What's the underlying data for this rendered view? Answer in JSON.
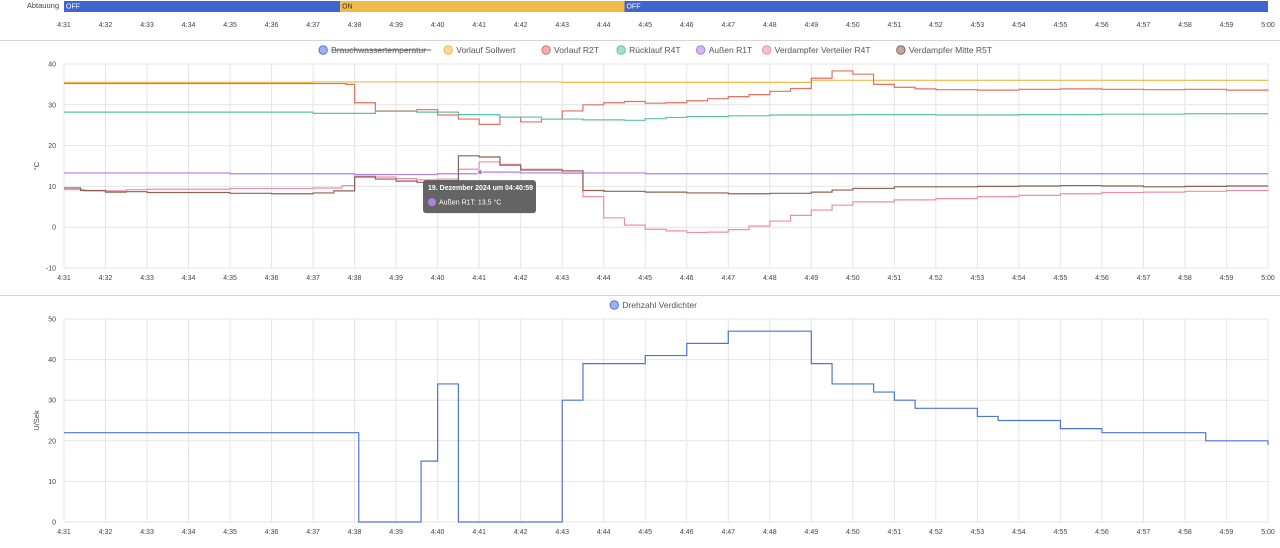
{
  "colors": {
    "timeline_off": "#3f66cf",
    "timeline_on": "#f2ba47",
    "grid": "#e4e4e4",
    "divider": "#d6d6d6",
    "tooltip_bg": "#5c5c5c"
  },
  "time_ticks": [
    "4:31",
    "4:32",
    "4:33",
    "4:34",
    "4:35",
    "4:36",
    "4:37",
    "4:38",
    "4:39",
    "4:40",
    "4:41",
    "4:42",
    "4:43",
    "4:44",
    "4:45",
    "4:46",
    "4:47",
    "4:48",
    "4:49",
    "4:50",
    "4:51",
    "4:52",
    "4:53",
    "4:54",
    "4:55",
    "4:56",
    "4:57",
    "4:58",
    "4:59",
    "5:00"
  ],
  "timeline": {
    "label": "Abtauung",
    "segments": [
      {
        "state": "OFF",
        "start": "4:31",
        "end": "4:37.65",
        "color": "#3f66cf",
        "text_color": "#ffffff"
      },
      {
        "state": "ON",
        "start": "4:37.65",
        "end": "4:44.5",
        "color": "#f2ba47",
        "text_color": "#333333"
      },
      {
        "state": "OFF",
        "start": "4:44.5",
        "end": "5:00",
        "color": "#3f66cf",
        "text_color": "#ffffff"
      }
    ]
  },
  "tooltip": {
    "title": "19. Dezember 2024 um 04:40:59",
    "line": "Außen R1T: 13,5 °C",
    "color": "#b07ee6",
    "point_x": 41.02,
    "point_y": 13.5
  },
  "chart_data": [
    {
      "type": "line",
      "step": true,
      "ylabel": "°C",
      "ylim": [
        -10,
        40
      ],
      "yticks": [
        -10,
        0,
        10,
        20,
        30,
        40
      ],
      "xlim": [
        31,
        60
      ],
      "legend_position": "top-center",
      "series": [
        {
          "name": "Brauchwassertemperatur",
          "color": "#4e73df",
          "hidden": true,
          "points": []
        },
        {
          "name": "Vorlauf Sollwert",
          "color": "#f2b84b",
          "points": [
            [
              31,
              35.5
            ],
            [
              37,
              35.6
            ],
            [
              43,
              35.5
            ],
            [
              49,
              36.0
            ],
            [
              60,
              36.0
            ]
          ]
        },
        {
          "name": "Vorlauf R2T",
          "color": "#e4705f",
          "points": [
            [
              31,
              35.2
            ],
            [
              37.8,
              35.0
            ],
            [
              38,
              30.5
            ],
            [
              38.5,
              28.5
            ],
            [
              39.5,
              28.8
            ],
            [
              40,
              27.5
            ],
            [
              40.5,
              26.5
            ],
            [
              41,
              25.2
            ],
            [
              41.5,
              27.0
            ],
            [
              42,
              25.8
            ],
            [
              42.5,
              26.5
            ],
            [
              43,
              28.5
            ],
            [
              43.5,
              30.0
            ],
            [
              44,
              30.5
            ],
            [
              44.5,
              30.8
            ],
            [
              45,
              30.4
            ],
            [
              45.5,
              30.5
            ],
            [
              46,
              31.0
            ],
            [
              46.5,
              31.5
            ],
            [
              47,
              32.0
            ],
            [
              47.5,
              32.5
            ],
            [
              48,
              33.3
            ],
            [
              48.5,
              34.0
            ],
            [
              49,
              36.5
            ],
            [
              49.5,
              38.3
            ],
            [
              50,
              37.5
            ],
            [
              50.5,
              35.0
            ],
            [
              51,
              34.3
            ],
            [
              51.5,
              33.9
            ],
            [
              52,
              33.7
            ],
            [
              53,
              33.6
            ],
            [
              54,
              33.8
            ],
            [
              55,
              33.9
            ],
            [
              56,
              33.8
            ],
            [
              57,
              33.7
            ],
            [
              58,
              33.8
            ],
            [
              59,
              33.6
            ],
            [
              60,
              33.4
            ]
          ]
        },
        {
          "name": "Rücklauf R4T",
          "color": "#58c4a5",
          "points": [
            [
              31,
              28.2
            ],
            [
              37,
              27.9
            ],
            [
              38.5,
              28.4
            ],
            [
              39.5,
              28.2
            ],
            [
              40.5,
              27.6
            ],
            [
              41.5,
              27.0
            ],
            [
              42.5,
              26.5
            ],
            [
              43.5,
              26.3
            ],
            [
              44.5,
              26.2
            ],
            [
              45,
              26.6
            ],
            [
              45.5,
              26.9
            ],
            [
              46,
              27.1
            ],
            [
              47,
              27.3
            ],
            [
              48,
              27.5
            ],
            [
              50,
              27.6
            ],
            [
              52,
              27.5
            ],
            [
              54,
              27.6
            ],
            [
              56,
              27.7
            ],
            [
              58,
              27.8
            ],
            [
              60,
              27.8
            ]
          ]
        },
        {
          "name": "Außen R1T",
          "color": "#b07ee6",
          "points": [
            [
              31,
              13.3
            ],
            [
              35,
              13.1
            ],
            [
              38,
              12.9
            ],
            [
              40,
              13.1
            ],
            [
              41,
              13.5
            ],
            [
              42,
              13.3
            ],
            [
              45,
              13.1
            ],
            [
              50,
              13.1
            ],
            [
              55,
              13.1
            ],
            [
              60,
              13.0
            ]
          ]
        },
        {
          "name": "Verdampfer Verteiler R4T",
          "color": "#f28ab0",
          "points": [
            [
              31,
              9.2
            ],
            [
              31.5,
              8.9
            ],
            [
              32.5,
              9.2
            ],
            [
              33,
              9.3
            ],
            [
              35,
              9.5
            ],
            [
              37,
              9.6
            ],
            [
              37.7,
              10.2
            ],
            [
              38,
              12.5
            ],
            [
              38.5,
              12.3
            ],
            [
              39,
              11.9
            ],
            [
              39.5,
              11.6
            ],
            [
              40,
              11.8
            ],
            [
              40.5,
              14.2
            ],
            [
              41,
              16.0
            ],
            [
              41.5,
              15.4
            ],
            [
              42,
              14.2
            ],
            [
              43,
              13.2
            ],
            [
              43.5,
              7.5
            ],
            [
              44,
              2.3
            ],
            [
              44.5,
              0.5
            ],
            [
              45,
              -0.5
            ],
            [
              45.5,
              -0.9
            ],
            [
              46,
              -1.3
            ],
            [
              46.5,
              -1.2
            ],
            [
              47,
              -0.6
            ],
            [
              47.5,
              0.3
            ],
            [
              48,
              1.5
            ],
            [
              48.5,
              2.9
            ],
            [
              49,
              4.2
            ],
            [
              49.5,
              5.4
            ],
            [
              50,
              6.2
            ],
            [
              51,
              6.7
            ],
            [
              52,
              7.0
            ],
            [
              53,
              7.5
            ],
            [
              54,
              7.8
            ],
            [
              55,
              8.2
            ],
            [
              56,
              8.5
            ],
            [
              57,
              8.6
            ],
            [
              58,
              8.8
            ],
            [
              59,
              9.0
            ],
            [
              60,
              8.9
            ]
          ]
        },
        {
          "name": "Verdampfer Mitte R5T",
          "color": "#8d6255",
          "points": [
            [
              31,
              9.6
            ],
            [
              31.4,
              9.0
            ],
            [
              32,
              8.6
            ],
            [
              32.5,
              8.7
            ],
            [
              33,
              8.5
            ],
            [
              35,
              8.3
            ],
            [
              36,
              8.2
            ],
            [
              37,
              8.4
            ],
            [
              37.5,
              8.9
            ],
            [
              38,
              12.3
            ],
            [
              38.5,
              11.8
            ],
            [
              39,
              11.3
            ],
            [
              39.5,
              11.0
            ],
            [
              40,
              11.4
            ],
            [
              40.5,
              17.5
            ],
            [
              41,
              17.2
            ],
            [
              41.5,
              15.2
            ],
            [
              42,
              14.0
            ],
            [
              43,
              13.8
            ],
            [
              43.5,
              9.0
            ],
            [
              44,
              8.8
            ],
            [
              45,
              8.6
            ],
            [
              46,
              8.4
            ],
            [
              47,
              8.2
            ],
            [
              48,
              8.3
            ],
            [
              49,
              8.6
            ],
            [
              49.5,
              9.1
            ],
            [
              50,
              9.5
            ],
            [
              51,
              9.9
            ],
            [
              52,
              9.9
            ],
            [
              53,
              10.0
            ],
            [
              54,
              10.1
            ],
            [
              55,
              10.2
            ],
            [
              56,
              10.1
            ],
            [
              57,
              9.9
            ],
            [
              58,
              10.0
            ],
            [
              59,
              10.1
            ],
            [
              60,
              10.2
            ]
          ]
        }
      ]
    },
    {
      "type": "line",
      "step": true,
      "ylabel": "U/Sek",
      "ylim": [
        0,
        50
      ],
      "yticks": [
        0,
        10,
        20,
        30,
        40,
        50
      ],
      "xlim": [
        31,
        60
      ],
      "legend_position": "top-center",
      "series": [
        {
          "name": "Drehzahl Verdichter",
          "color": "#4e73df",
          "points": [
            [
              31,
              22
            ],
            [
              38.1,
              0
            ],
            [
              39.6,
              15
            ],
            [
              40,
              34
            ],
            [
              40.5,
              0
            ],
            [
              43,
              30
            ],
            [
              43.5,
              39
            ],
            [
              44.5,
              39
            ],
            [
              45,
              41
            ],
            [
              46,
              44
            ],
            [
              47,
              47
            ],
            [
              49,
              39
            ],
            [
              49.5,
              34
            ],
            [
              50.5,
              32
            ],
            [
              51,
              30
            ],
            [
              51.5,
              28
            ],
            [
              53,
              26
            ],
            [
              53.5,
              25
            ],
            [
              55,
              23
            ],
            [
              56,
              22
            ],
            [
              58,
              22
            ],
            [
              58.5,
              20
            ],
            [
              60,
              19
            ]
          ]
        }
      ]
    }
  ]
}
